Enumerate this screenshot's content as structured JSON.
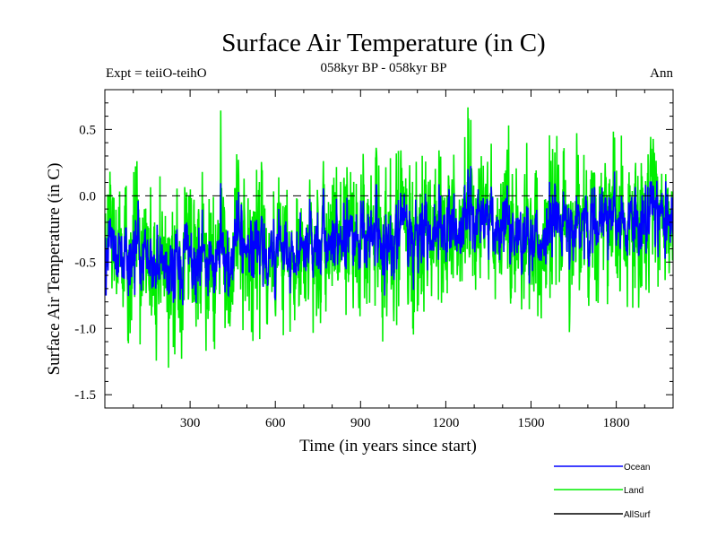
{
  "chart_data": {
    "type": "line",
    "title": "Surface Air Temperature (in C)",
    "subtitle": "058kyr BP - 058kyr BP",
    "left_label": "Expt = teiiO-teihO",
    "right_label": "Ann",
    "xlabel": "Time (in years since start)",
    "ylabel": "Surface Air Temperature (in C)",
    "xlim": [
      0,
      2000
    ],
    "ylim": [
      -1.6,
      0.8
    ],
    "x_ticks": [
      300,
      600,
      900,
      1200,
      1500,
      1800
    ],
    "y_ticks": [
      -1.5,
      -1.0,
      -0.5,
      0.0,
      0.5
    ],
    "x_tick_labels": [
      "300",
      "600",
      "900",
      "1200",
      "1500",
      "1800"
    ],
    "y_tick_labels": [
      "-1.5",
      "-1.0",
      "-0.5",
      "0.0",
      "0.5"
    ],
    "reference_line": {
      "y": 0.0,
      "style": "dashed"
    },
    "legend_position": "bottom-right",
    "series": [
      {
        "name": "Ocean",
        "color": "#0000ff",
        "trend": {
          "x": [
            0,
            100,
            200,
            300,
            400,
            500,
            600,
            700,
            800,
            900,
            1000,
            1100,
            1200,
            1300,
            1400,
            1500,
            1600,
            1700,
            1800,
            1900,
            2000
          ],
          "y": [
            -0.5,
            -0.45,
            -0.5,
            -0.5,
            -0.42,
            -0.35,
            -0.45,
            -0.35,
            -0.32,
            -0.3,
            -0.35,
            -0.25,
            -0.25,
            -0.2,
            -0.25,
            -0.32,
            -0.25,
            -0.25,
            -0.15,
            -0.18,
            -0.18
          ]
        },
        "variability": 0.15
      },
      {
        "name": "Land",
        "color": "#00ee00",
        "trend": {
          "x": [
            0,
            100,
            200,
            300,
            400,
            500,
            600,
            700,
            800,
            900,
            1000,
            1100,
            1200,
            1300,
            1400,
            1500,
            1600,
            1700,
            1800,
            1900,
            2000
          ],
          "y": [
            -0.5,
            -0.45,
            -0.5,
            -0.5,
            -0.42,
            -0.35,
            -0.45,
            -0.35,
            -0.32,
            -0.3,
            -0.35,
            -0.25,
            -0.25,
            -0.2,
            -0.25,
            -0.32,
            -0.25,
            -0.25,
            -0.15,
            -0.18,
            -0.18
          ]
        },
        "variability": 0.3,
        "min": -1.3,
        "max": 0.67
      },
      {
        "name": "AllSurf",
        "color": "#000000"
      }
    ]
  }
}
